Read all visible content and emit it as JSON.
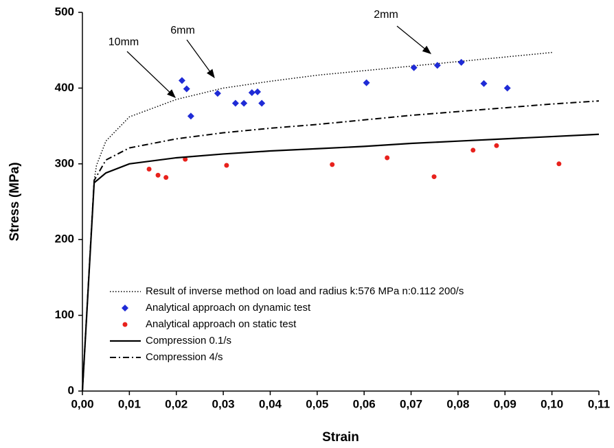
{
  "chart_data": {
    "type": "line",
    "xlabel": "Strain",
    "ylabel": "Stress (MPa)",
    "xlim": [
      0,
      0.11
    ],
    "ylim": [
      0,
      500
    ],
    "xticks": [
      {
        "value": 0,
        "label": "0,00"
      },
      {
        "value": 0.01,
        "label": "0,01"
      },
      {
        "value": 0.02,
        "label": "0,02"
      },
      {
        "value": 0.03,
        "label": "0,03"
      },
      {
        "value": 0.04,
        "label": "0,04"
      },
      {
        "value": 0.05,
        "label": "0,05"
      },
      {
        "value": 0.06,
        "label": "0,06"
      },
      {
        "value": 0.07,
        "label": "0,07"
      },
      {
        "value": 0.08,
        "label": "0,08"
      },
      {
        "value": 0.09,
        "label": "0,09"
      },
      {
        "value": 0.1,
        "label": "0,10"
      },
      {
        "value": 0.11,
        "label": "0,11"
      }
    ],
    "yticks": [
      0,
      100,
      200,
      300,
      400,
      500
    ],
    "annotations": [
      "10mm",
      "6mm",
      "2mm"
    ],
    "series": [
      {
        "name": "Result of inverse method on load and radius k:576 MPa n:0.112  200/s",
        "color": "#000000",
        "style": "dotted",
        "x": [
          0,
          0.0025,
          0.003,
          0.005,
          0.01,
          0.02,
          0.03,
          0.04,
          0.05,
          0.06,
          0.07,
          0.08,
          0.09,
          0.1
        ],
        "values": [
          0,
          278,
          298,
          330,
          362,
          385,
          400,
          409,
          417,
          423,
          429,
          435,
          441,
          447
        ]
      },
      {
        "name": "Analytical approach on dynamic test",
        "color": "#1f2bd6",
        "style": "diamond",
        "x": [
          0.0212,
          0.0222,
          0.0231,
          0.0288,
          0.0326,
          0.0344,
          0.0361,
          0.0373,
          0.0382,
          0.0605,
          0.0706,
          0.0756,
          0.0807,
          0.0855,
          0.0905
        ],
        "values": [
          410,
          399,
          363,
          393,
          380,
          380,
          394,
          395,
          380,
          407,
          427,
          430,
          434,
          406,
          400
        ]
      },
      {
        "name": "Analytical approach on static test",
        "color": "#e8211c",
        "style": "circle",
        "x": [
          0.0142,
          0.0161,
          0.0178,
          0.0219,
          0.0307,
          0.0532,
          0.0649,
          0.0749,
          0.0832,
          0.0882,
          0.1015
        ],
        "values": [
          293,
          285,
          282,
          306,
          298,
          299,
          308,
          283,
          318,
          324,
          300
        ]
      },
      {
        "name": "Compression 0.1/s",
        "color": "#000000",
        "style": "solid",
        "x": [
          0,
          0.0025,
          0.005,
          0.01,
          0.02,
          0.03,
          0.04,
          0.05,
          0.06,
          0.07,
          0.08,
          0.09,
          0.1,
          0.11
        ],
        "values": [
          0,
          275,
          288,
          300,
          308,
          313,
          317,
          320,
          323,
          327,
          330,
          333,
          336,
          339
        ]
      },
      {
        "name": "Compression 4/s",
        "color": "#000000",
        "style": "dashdot",
        "x": [
          0,
          0.0025,
          0.005,
          0.01,
          0.02,
          0.03,
          0.04,
          0.05,
          0.06,
          0.07,
          0.08,
          0.09,
          0.1,
          0.11
        ],
        "values": [
          0,
          278,
          305,
          321,
          333,
          341,
          347,
          352,
          358,
          364,
          369,
          374,
          379,
          383
        ]
      }
    ]
  }
}
